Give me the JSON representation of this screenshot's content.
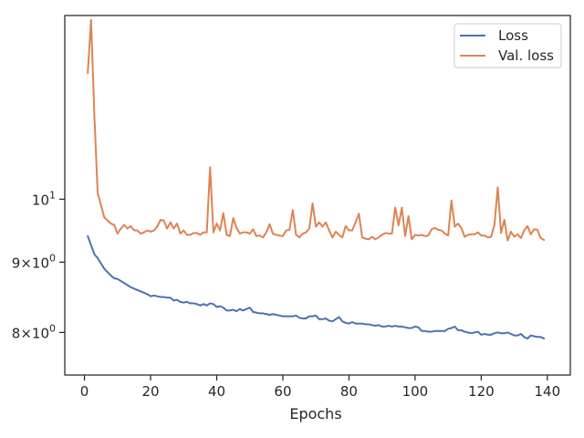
{
  "chart_data": {
    "type": "line",
    "title": "",
    "xlabel": "Epochs",
    "ylabel": "",
    "xlim": [
      -5.95,
      146.95
    ],
    "ylim": [
      7.45,
      13.6
    ],
    "yscale": "log",
    "grid": false,
    "legend_position": "upper right",
    "x_ticks": [
      0,
      20,
      40,
      60,
      80,
      100,
      120,
      140
    ],
    "x_tick_labels": [
      "0",
      "20",
      "40",
      "60",
      "80",
      "100",
      "120",
      "140"
    ],
    "y_ticks": [
      8,
      9,
      10
    ],
    "y_tick_labels": [
      {
        "base": "8",
        "sep": "×",
        "exp_base": "10",
        "exp": "0"
      },
      {
        "base": "9",
        "sep": "×",
        "exp_base": "10",
        "exp": "0"
      },
      {
        "base": "",
        "sep": "",
        "exp_base": "10",
        "exp": "1"
      }
    ],
    "x": [
      1,
      2,
      3,
      4,
      5,
      6,
      7,
      8,
      9,
      10,
      11,
      12,
      13,
      14,
      15,
      16,
      17,
      18,
      19,
      20,
      21,
      22,
      23,
      24,
      25,
      26,
      27,
      28,
      29,
      30,
      31,
      32,
      33,
      34,
      35,
      36,
      37,
      38,
      39,
      40,
      41,
      42,
      43,
      44,
      45,
      46,
      47,
      48,
      49,
      50,
      51,
      52,
      53,
      54,
      55,
      56,
      57,
      58,
      59,
      60,
      61,
      62,
      63,
      64,
      65,
      66,
      67,
      68,
      69,
      70,
      71,
      72,
      73,
      74,
      75,
      76,
      77,
      78,
      79,
      80,
      81,
      82,
      83,
      84,
      85,
      86,
      87,
      88,
      89,
      90,
      91,
      92,
      93,
      94,
      95,
      96,
      97,
      98,
      99,
      100,
      101,
      102,
      103,
      104,
      105,
      106,
      107,
      108,
      109,
      110,
      111,
      112,
      113,
      114,
      115,
      116,
      117,
      118,
      119,
      120,
      121,
      122,
      123,
      124,
      125,
      126,
      127,
      128,
      129,
      130,
      131,
      132,
      133,
      134,
      135,
      136,
      137,
      138,
      139
    ],
    "series": [
      {
        "name": "Loss",
        "color": "#4c72b0",
        "values": [
          9.4,
          9.26,
          9.12,
          9.06,
          8.98,
          8.9,
          8.85,
          8.8,
          8.76,
          8.75,
          8.72,
          8.69,
          8.66,
          8.63,
          8.61,
          8.59,
          8.57,
          8.55,
          8.53,
          8.5,
          8.51,
          8.5,
          8.49,
          8.49,
          8.48,
          8.48,
          8.44,
          8.45,
          8.42,
          8.41,
          8.42,
          8.4,
          8.4,
          8.39,
          8.37,
          8.39,
          8.37,
          8.4,
          8.39,
          8.35,
          8.36,
          8.34,
          8.3,
          8.3,
          8.31,
          8.29,
          8.32,
          8.3,
          8.32,
          8.34,
          8.28,
          8.27,
          8.26,
          8.26,
          8.25,
          8.24,
          8.25,
          8.24,
          8.23,
          8.22,
          8.22,
          8.22,
          8.22,
          8.23,
          8.2,
          8.19,
          8.19,
          8.22,
          8.22,
          8.23,
          8.18,
          8.18,
          8.19,
          8.16,
          8.15,
          8.18,
          8.21,
          8.15,
          8.13,
          8.12,
          8.14,
          8.12,
          8.12,
          8.12,
          8.11,
          8.11,
          8.1,
          8.09,
          8.1,
          8.08,
          8.08,
          8.09,
          8.08,
          8.09,
          8.08,
          8.08,
          8.07,
          8.06,
          8.06,
          8.08,
          8.07,
          8.02,
          8.02,
          8.01,
          8.01,
          8.02,
          8.02,
          8.02,
          8.02,
          8.05,
          8.06,
          8.08,
          8.03,
          8.03,
          8.01,
          8.0,
          7.99,
          8.0,
          8.01,
          7.97,
          7.98,
          7.97,
          7.97,
          7.99,
          8.0,
          7.99,
          7.99,
          8.0,
          7.98,
          7.96,
          7.96,
          7.98,
          7.94,
          7.92,
          7.96,
          7.95,
          7.94,
          7.94,
          7.92
        ]
      },
      {
        "name": "Val. loss",
        "color": "#dd8452",
        "values": [
          12.35,
          13.5,
          11.5,
          10.1,
          9.9,
          9.7,
          9.65,
          9.6,
          9.58,
          9.44,
          9.52,
          9.58,
          9.52,
          9.56,
          9.49,
          9.49,
          9.44,
          9.46,
          9.49,
          9.47,
          9.49,
          9.55,
          9.66,
          9.65,
          9.52,
          9.62,
          9.52,
          9.6,
          9.44,
          9.49,
          9.42,
          9.42,
          9.45,
          9.45,
          9.42,
          9.46,
          9.46,
          10.55,
          9.46,
          9.6,
          9.49,
          9.77,
          9.42,
          9.4,
          9.69,
          9.53,
          9.44,
          9.46,
          9.46,
          9.44,
          9.51,
          9.4,
          9.41,
          9.38,
          9.46,
          9.59,
          9.44,
          9.42,
          9.41,
          9.4,
          9.49,
          9.5,
          9.82,
          9.42,
          9.38,
          9.44,
          9.46,
          9.52,
          9.93,
          9.55,
          9.62,
          9.55,
          9.62,
          9.49,
          9.38,
          9.47,
          9.42,
          9.38,
          9.56,
          9.49,
          9.49,
          9.62,
          9.76,
          9.38,
          9.36,
          9.35,
          9.39,
          9.35,
          9.38,
          9.42,
          9.45,
          9.44,
          9.44,
          9.86,
          9.57,
          9.86,
          9.4,
          9.72,
          9.35,
          9.42,
          9.41,
          9.42,
          9.4,
          9.41,
          9.51,
          9.53,
          9.5,
          9.49,
          9.44,
          9.41,
          9.98,
          9.55,
          9.6,
          9.53,
          9.39,
          9.42,
          9.43,
          9.43,
          9.46,
          9.41,
          9.41,
          9.38,
          9.39,
          9.58,
          10.2,
          9.45,
          9.66,
          9.33,
          9.47,
          9.39,
          9.43,
          9.37,
          9.49,
          9.56,
          9.43,
          9.51,
          9.5,
          9.37,
          9.34
        ]
      }
    ]
  }
}
